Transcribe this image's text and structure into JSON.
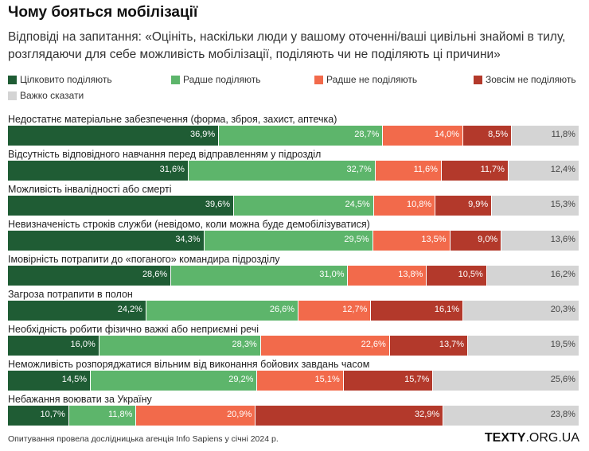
{
  "title": "Чому бояться мобілізації",
  "subtitle": "Відповіді на запитання: «Оцініть, наскільки люди у вашому оточенні/ваші цивільні знайомі в тилу, розглядаючи для себе можливість мобілізації, поділяють чи не поділяють ці причини»",
  "footer": "Опитування провела дослідницька агенція Info Sapiens у січні 2024 р.",
  "brand": {
    "bold": "TEXTY",
    "rest": ".ORG.UA"
  },
  "chart_data": {
    "type": "bar",
    "stacked": true,
    "orientation": "horizontal",
    "unit": "%",
    "legend_position": "top",
    "categories": [
      "Недостатнє матеріальне забезпечення (форма, зброя, захист, аптечка)",
      "Відсутність відповідного навчання перед відправленням у підрозділ",
      "Можливість інвалідності або смерті",
      "Невизначеність строків служби (невідомо, коли можна буде демобілізуватися)",
      "Імовірність потрапити до «поганого» командира підрозділу",
      "Загроза потрапити в полон",
      "Необхідність робити фізично важкі або неприємні речі",
      "Неможливість розпоряджатися вільним від виконання бойових завдань часом",
      "Небажання воювати за Україну"
    ],
    "series": [
      {
        "name": "Цілковито поділяють",
        "color": "#1f5c34",
        "values": [
          36.9,
          31.6,
          39.6,
          34.3,
          28.6,
          24.2,
          16.0,
          14.5,
          10.7
        ]
      },
      {
        "name": "Радше поділяють",
        "color": "#5db56b",
        "values": [
          28.7,
          32.7,
          24.5,
          29.5,
          31.0,
          26.6,
          28.3,
          29.2,
          11.8
        ]
      },
      {
        "name": "Радше не поділяють",
        "color": "#f26a4b",
        "values": [
          14.0,
          11.6,
          10.8,
          13.5,
          13.8,
          12.7,
          22.6,
          15.1,
          20.9
        ]
      },
      {
        "name": "Зовсім не поділяють",
        "color": "#b3392b",
        "values": [
          8.5,
          11.7,
          9.9,
          9.0,
          10.5,
          16.1,
          13.7,
          15.7,
          32.9
        ]
      },
      {
        "name": "Важко сказати",
        "color": "#d4d4d4",
        "values": [
          11.8,
          12.4,
          15.3,
          13.6,
          16.2,
          20.3,
          19.5,
          25.6,
          23.8
        ]
      }
    ]
  }
}
